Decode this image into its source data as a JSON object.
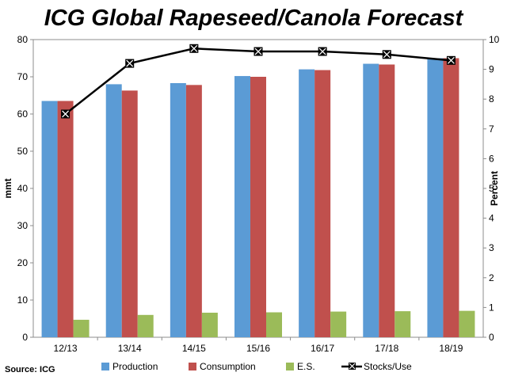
{
  "chart_data": {
    "type": "bar",
    "title": "ICG Global Rapeseed/Canola Forecast",
    "source": "Source: ICG",
    "categories": [
      "12/13",
      "13/14",
      "14/15",
      "15/16",
      "16/17",
      "17/18",
      "18/19"
    ],
    "series": [
      {
        "name": "Production",
        "type": "bar",
        "axis": "left",
        "color": "#5b9bd5",
        "values": [
          63.5,
          68.0,
          68.3,
          70.2,
          72.0,
          73.5,
          75.0
        ]
      },
      {
        "name": "Consumption",
        "type": "bar",
        "axis": "left",
        "color": "#c0504d",
        "values": [
          63.5,
          66.3,
          67.8,
          70.0,
          71.8,
          73.3,
          75.0
        ]
      },
      {
        "name": "E.S.",
        "type": "bar",
        "axis": "left",
        "color": "#9bbb59",
        "values": [
          4.7,
          6.0,
          6.6,
          6.7,
          6.9,
          7.0,
          7.1
        ]
      },
      {
        "name": "Stocks/Use",
        "type": "line",
        "axis": "right",
        "color": "#000000",
        "marker": "x-square",
        "values": [
          7.5,
          9.2,
          9.7,
          9.6,
          9.6,
          9.5,
          9.3
        ]
      }
    ],
    "ylabel": "mmt",
    "y2label": "Percent",
    "ylim": [
      0,
      80
    ],
    "y2lim": [
      0,
      10
    ],
    "yticks": [
      "0",
      "10",
      "20",
      "30",
      "40",
      "50",
      "60",
      "70",
      "80"
    ],
    "y2ticks": [
      "0",
      "1",
      "2",
      "3",
      "4",
      "5",
      "6",
      "7",
      "8",
      "9",
      "10"
    ],
    "grid": false,
    "legend": "bottom"
  }
}
